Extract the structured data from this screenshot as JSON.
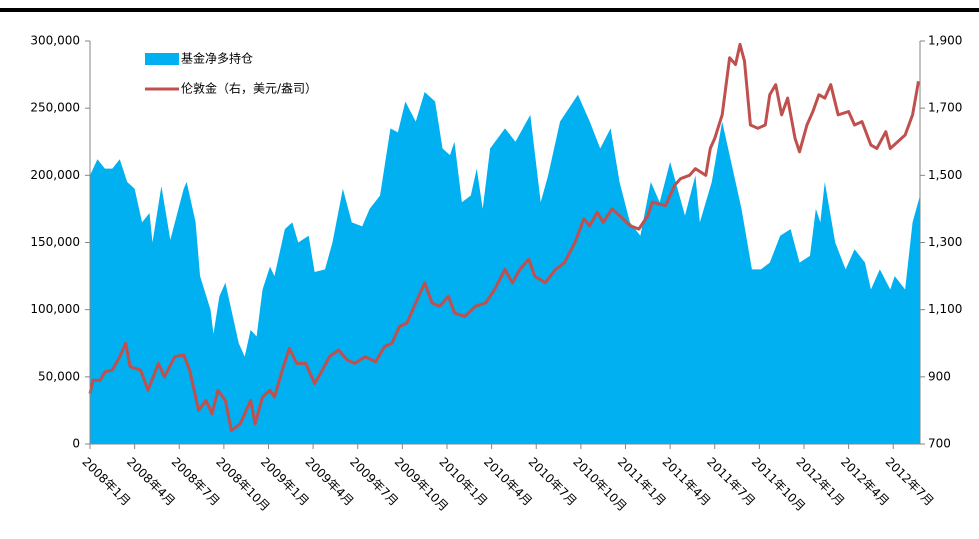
{
  "chart_data": {
    "type": "area_line",
    "xlim": [
      0,
      55.8
    ],
    "xticks": [
      {
        "value": 0,
        "label": "2008年1月"
      },
      {
        "value": 3,
        "label": "2008年4月"
      },
      {
        "value": 6,
        "label": "2008年7月"
      },
      {
        "value": 9,
        "label": "2008年10月"
      },
      {
        "value": 12,
        "label": "2009年1月"
      },
      {
        "value": 15,
        "label": "2009年4月"
      },
      {
        "value": 18,
        "label": "2009年7月"
      },
      {
        "value": 21,
        "label": "2009年10月"
      },
      {
        "value": 24,
        "label": "2010年1月"
      },
      {
        "value": 27,
        "label": "2010年4月"
      },
      {
        "value": 30,
        "label": "2010年7月"
      },
      {
        "value": 33,
        "label": "2010年10月"
      },
      {
        "value": 36,
        "label": "2011年1月"
      },
      {
        "value": 39,
        "label": "2011年4月"
      },
      {
        "value": 42,
        "label": "2011年7月"
      },
      {
        "value": 45,
        "label": "2011年10月"
      },
      {
        "value": 48,
        "label": "2012年1月"
      },
      {
        "value": 51,
        "label": "2012年4月"
      },
      {
        "value": 54,
        "label": "2012年7月"
      }
    ],
    "ylim": [
      0,
      300000
    ],
    "yticks": [
      0,
      {
        "value": 50000,
        "label": "50,000"
      },
      {
        "value": 100000,
        "label": "100,000"
      },
      {
        "value": 150000,
        "label": "150,000"
      },
      {
        "value": 200000,
        "label": "200,000"
      },
      {
        "value": 250000,
        "label": "250,000"
      },
      {
        "value": 300000,
        "label": "300,000"
      }
    ],
    "y2lim": [
      700,
      1900
    ],
    "y2ticks": [
      700,
      900,
      {
        "value": 1100,
        "label": "1,100"
      },
      {
        "value": 1300,
        "label": "1,300"
      },
      {
        "value": 1500,
        "label": "1,500"
      },
      {
        "value": 1700,
        "label": "1,700"
      },
      {
        "value": 1900,
        "label": "1,900"
      }
    ],
    "legend": "upper left",
    "grid": false,
    "series": [
      {
        "name": "基金净多持仓",
        "kind": "area",
        "color": "#00b0f0",
        "x": [
          0,
          0.5,
          1,
          1.5,
          2,
          2.5,
          3,
          3.5,
          4,
          4.2,
          4.8,
          5.4,
          6.3,
          6.5,
          7.1,
          7.4,
          8.1,
          8.3,
          8.7,
          9.1,
          9.5,
          10,
          10.4,
          10.8,
          11.2,
          11.6,
          12.1,
          12.4,
          13.1,
          13.6,
          14,
          14.7,
          15.1,
          15.8,
          16.3,
          17,
          17.6,
          18.3,
          18.8,
          19.5,
          20.2,
          20.7,
          21.2,
          21.9,
          22.5,
          23.2,
          23.7,
          24.2,
          24.5,
          25,
          25.6,
          26,
          26.4,
          26.9,
          27.9,
          28.6,
          29.6,
          30.3,
          30.8,
          31.6,
          32.8,
          33.6,
          34.3,
          35,
          35.6,
          36.3,
          37,
          37.7,
          38.3,
          39,
          40,
          40.7,
          41,
          41.8,
          42.5,
          43.4,
          43.8,
          44.5,
          45.1,
          45.7,
          46.4,
          47.1,
          47.7,
          48.4,
          48.8,
          49.1,
          49.4,
          50.1,
          50.8,
          51.4,
          52.1,
          52.5,
          53.1,
          53.8,
          54.1,
          54.8,
          55.3,
          55.8
        ],
        "values": [
          200000,
          212000,
          205000,
          205000,
          212000,
          195000,
          190000,
          165000,
          172000,
          150000,
          192000,
          152000,
          190000,
          195000,
          165000,
          125000,
          100000,
          82000,
          110000,
          120000,
          100000,
          75000,
          65000,
          85000,
          80000,
          115000,
          132000,
          125000,
          160000,
          165000,
          150000,
          155000,
          128000,
          130000,
          150000,
          190000,
          165000,
          162000,
          175000,
          185000,
          235000,
          232000,
          255000,
          240000,
          262000,
          255000,
          220000,
          215000,
          225000,
          180000,
          185000,
          205000,
          175000,
          220000,
          235000,
          225000,
          245000,
          180000,
          200000,
          240000,
          260000,
          240000,
          220000,
          235000,
          195000,
          165000,
          155000,
          195000,
          180000,
          210000,
          170000,
          200000,
          165000,
          195000,
          240000,
          195000,
          175000,
          130000,
          130000,
          135000,
          155000,
          160000,
          135000,
          140000,
          175000,
          165000,
          195000,
          150000,
          130000,
          145000,
          135000,
          115000,
          130000,
          115000,
          125000,
          115000,
          165000,
          185000
        ]
      },
      {
        "name": "伦敦金（右，美元/盎司）",
        "kind": "line",
        "axis": "y2",
        "color": "#c0504d",
        "x": [
          0,
          0.2,
          0.7,
          1,
          1.5,
          2,
          2.4,
          2.7,
          3.4,
          3.9,
          4.6,
          5,
          5.7,
          6.3,
          6.7,
          7.3,
          7.8,
          8.2,
          8.6,
          9.1,
          9.5,
          10.1,
          10.8,
          11.1,
          11.6,
          12.1,
          12.4,
          13,
          13.4,
          13.9,
          14.5,
          15.1,
          15.5,
          16.1,
          16.7,
          17.3,
          17.8,
          18.5,
          19.2,
          19.8,
          20.3,
          20.8,
          21.3,
          21.9,
          22.5,
          23,
          23.5,
          24.1,
          24.5,
          25.2,
          25.9,
          26.6,
          27.2,
          27.9,
          28.4,
          28.9,
          29.5,
          29.9,
          30.6,
          31.3,
          31.9,
          32.6,
          33.2,
          33.6,
          34.1,
          34.5,
          35.1,
          35.6,
          36.3,
          36.9,
          37.5,
          37.8,
          38.7,
          39.3,
          39.7,
          40.3,
          40.7,
          41.4,
          41.7,
          42,
          42.5,
          43,
          43.4,
          43.7,
          44,
          44.4,
          44.9,
          45.4,
          45.7,
          46.1,
          46.5,
          46.9,
          47.4,
          47.7,
          48.2,
          48.6,
          49,
          49.4,
          49.8,
          50.3,
          51,
          51.4,
          51.9,
          52.5,
          52.9,
          53.5,
          53.8,
          54.3,
          54.8,
          55.3,
          55.7
        ],
        "values": [
          850,
          890,
          890,
          915,
          920,
          960,
          1000,
          930,
          920,
          860,
          940,
          900,
          960,
          965,
          920,
          800,
          830,
          790,
          860,
          830,
          740,
          760,
          830,
          760,
          840,
          860,
          840,
          930,
          985,
          940,
          940,
          880,
          910,
          960,
          980,
          950,
          940,
          960,
          945,
          990,
          1000,
          1050,
          1060,
          1120,
          1180,
          1120,
          1110,
          1140,
          1090,
          1080,
          1110,
          1120,
          1160,
          1220,
          1180,
          1220,
          1250,
          1200,
          1180,
          1220,
          1240,
          1300,
          1370,
          1350,
          1390,
          1360,
          1400,
          1380,
          1350,
          1340,
          1380,
          1420,
          1410,
          1470,
          1490,
          1500,
          1520,
          1500,
          1580,
          1610,
          1680,
          1850,
          1830,
          1890,
          1840,
          1650,
          1640,
          1650,
          1740,
          1770,
          1680,
          1730,
          1610,
          1570,
          1650,
          1690,
          1740,
          1730,
          1770,
          1680,
          1690,
          1650,
          1660,
          1590,
          1580,
          1630,
          1580,
          1600,
          1620,
          1680,
          1780
        ]
      }
    ]
  }
}
